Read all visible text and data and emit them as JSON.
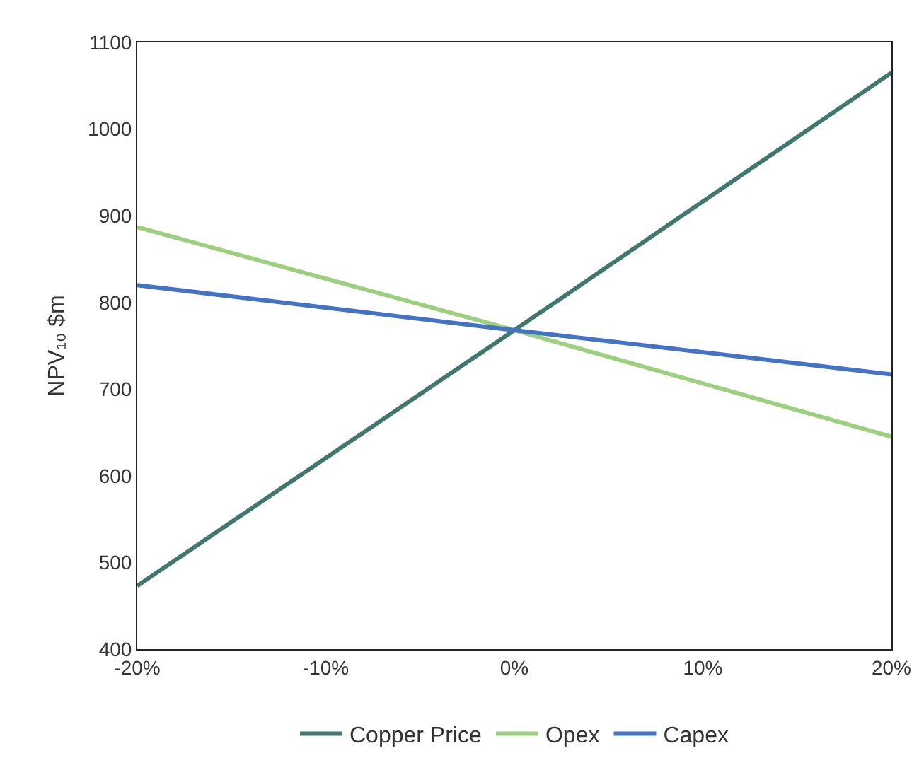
{
  "chart_data": {
    "type": "line",
    "ylabel": "NPV₁₀ $m",
    "x": [
      -20,
      0,
      20
    ],
    "series": [
      {
        "name": "Copper Price",
        "color": "#41776f",
        "values": [
          473,
          768,
          1065
        ]
      },
      {
        "name": "Opex",
        "color": "#9dd07e",
        "values": [
          887,
          768,
          645
        ]
      },
      {
        "name": "Capex",
        "color": "#4472c4",
        "values": [
          820,
          768,
          717
        ]
      }
    ],
    "xlim": [
      -20,
      20
    ],
    "xticks": [
      {
        "value": -20,
        "label": "-20%"
      },
      {
        "value": -10,
        "label": "-10%"
      },
      {
        "value": 0,
        "label": "0%"
      },
      {
        "value": 10,
        "label": "10%"
      },
      {
        "value": 20,
        "label": "20%"
      }
    ],
    "ylim": [
      400,
      1100
    ],
    "yticks": [
      400,
      500,
      600,
      700,
      800,
      900,
      1000,
      1100
    ],
    "grid": false,
    "legend": "bottom",
    "marker": "none",
    "line_style": "solid"
  }
}
